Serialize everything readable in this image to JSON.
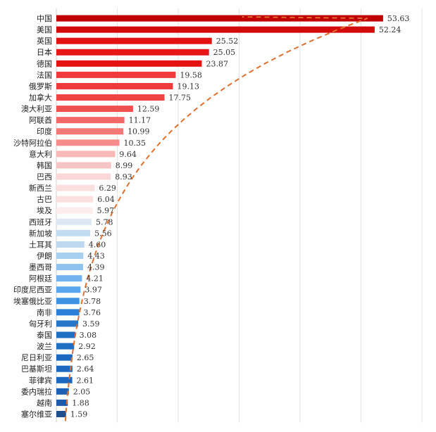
{
  "chart_data": {
    "type": "bar",
    "orientation": "horizontal",
    "title": "",
    "xlabel": "",
    "ylabel": "",
    "grid": true,
    "xlim": [
      0,
      60
    ],
    "categories": [
      "中国",
      "美国",
      "英国",
      "日本",
      "德国",
      "法国",
      "俄罗斯",
      "加拿大",
      "澳大利亚",
      "阿联酋",
      "印度",
      "沙特阿拉伯",
      "意大利",
      "韩国",
      "巴西",
      "新西兰",
      "古巴",
      "埃及",
      "西班牙",
      "新加坡",
      "土耳其",
      "伊朗",
      "墨西哥",
      "阿根廷",
      "印度尼西亚",
      "埃塞俄比亚",
      "南非",
      "匈牙利",
      "泰国",
      "波兰",
      "尼日利亚",
      "巴基斯坦",
      "菲律宾",
      "委内瑞拉",
      "越南",
      "塞尔维亚"
    ],
    "values": [
      53.63,
      52.24,
      25.52,
      25.05,
      23.87,
      19.58,
      19.13,
      17.75,
      12.59,
      11.17,
      10.99,
      10.35,
      9.64,
      8.99,
      8.93,
      6.29,
      6.04,
      5.97,
      5.78,
      5.56,
      4.6,
      4.43,
      4.39,
      4.21,
      3.97,
      3.78,
      3.76,
      3.59,
      3.08,
      2.92,
      2.65,
      2.64,
      2.61,
      2.05,
      1.88,
      1.59
    ],
    "value_labels": [
      "53.63",
      "52.24",
      "25.52",
      "25.05",
      "23.87",
      "19.58",
      "19.13",
      "17.75",
      "12.59",
      "11.17",
      "10.99",
      "10.35",
      "9.64",
      "8.99",
      "8.93",
      "6.29",
      "6.04",
      "5.97",
      "5.78",
      "5.56",
      "4.60",
      "4.43",
      "4.39",
      "4.21",
      "3.97",
      "3.78",
      "3.76",
      "3.59",
      "3.08",
      "2.92",
      "2.65",
      "2.64",
      "2.61",
      "2.05",
      "1.88",
      "1.59"
    ],
    "colors": [
      "#c00000",
      "#d40a0a",
      "#e21212",
      "#e81616",
      "#e41212",
      "#ee3a3a",
      "#ee3a3a",
      "#ee4444",
      "#ee5050",
      "#f26868",
      "#f57878",
      "#f68c8c",
      "#f8b8b8",
      "#f6c4c4",
      "#fad8d8",
      "#fbdede",
      "#fce0e0",
      "#fdecec",
      "#dde8f4",
      "#c2dbf0",
      "#bdd8ef",
      "#a8cef0",
      "#90c2f0",
      "#72b2ee",
      "#5aa6ec",
      "#3e92e2",
      "#2a7ed6",
      "#2676cc",
      "#1e6ec4",
      "#1e6ec4",
      "#1a68c0",
      "#1a68c0",
      "#1a68c0",
      "#1d60b4",
      "#1f5aa8",
      "#1f4e8c"
    ],
    "trendline": {
      "type": "dashed",
      "color": "#e07030"
    }
  }
}
